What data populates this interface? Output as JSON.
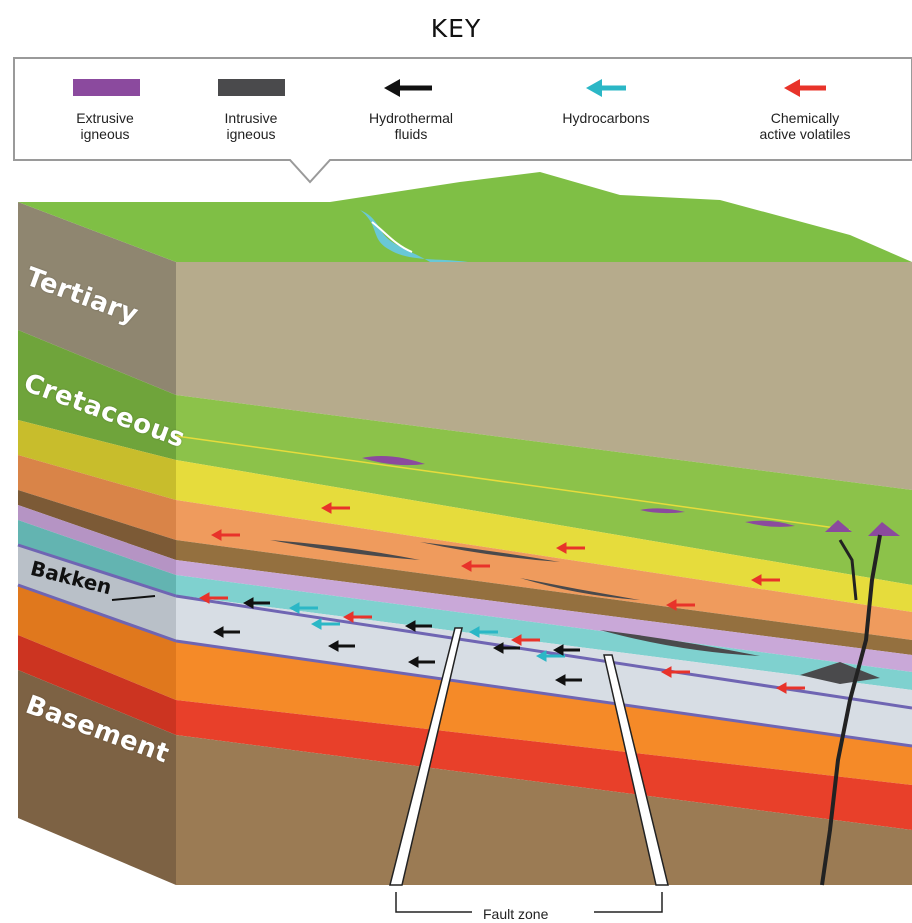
{
  "key": {
    "title": "KEY",
    "items": [
      {
        "label1": "Extrusive",
        "label2": "igneous",
        "symbol": "swatch",
        "color": "#8b4a9e"
      },
      {
        "label1": "Intrusive",
        "label2": "igneous",
        "symbol": "swatch",
        "color": "#4a4a4c"
      },
      {
        "label1": "Hydrothermal",
        "label2": "fluids",
        "symbol": "arrow",
        "color": "#111111"
      },
      {
        "label1": "Hydrocarbons",
        "label2": "",
        "symbol": "arrow",
        "color": "#2bb7c6"
      },
      {
        "label1": "Chemically",
        "label2": "active volatiles",
        "symbol": "arrow",
        "color": "#e8332a"
      }
    ]
  },
  "layers": {
    "tertiary": "Tertiary",
    "cretaceous": "Cretaceous",
    "bakken": "Bakken",
    "basement": "Basement"
  },
  "fault_zone_label": "Fault zone",
  "colors": {
    "surface_green": "#7fbf45",
    "tertiary": "#b6ab8c",
    "cretaceous": "#8cc24a",
    "yellow": "#e6dc3c",
    "orange_layer": "#ef9b5d",
    "purple_layer": "#c9a8d8",
    "teal_layer": "#7fd1cf",
    "bakken": "#d7dde4",
    "basement_orange": "#f58a28",
    "basement_red": "#e8402a",
    "basement_brown": "#9b7b54"
  }
}
